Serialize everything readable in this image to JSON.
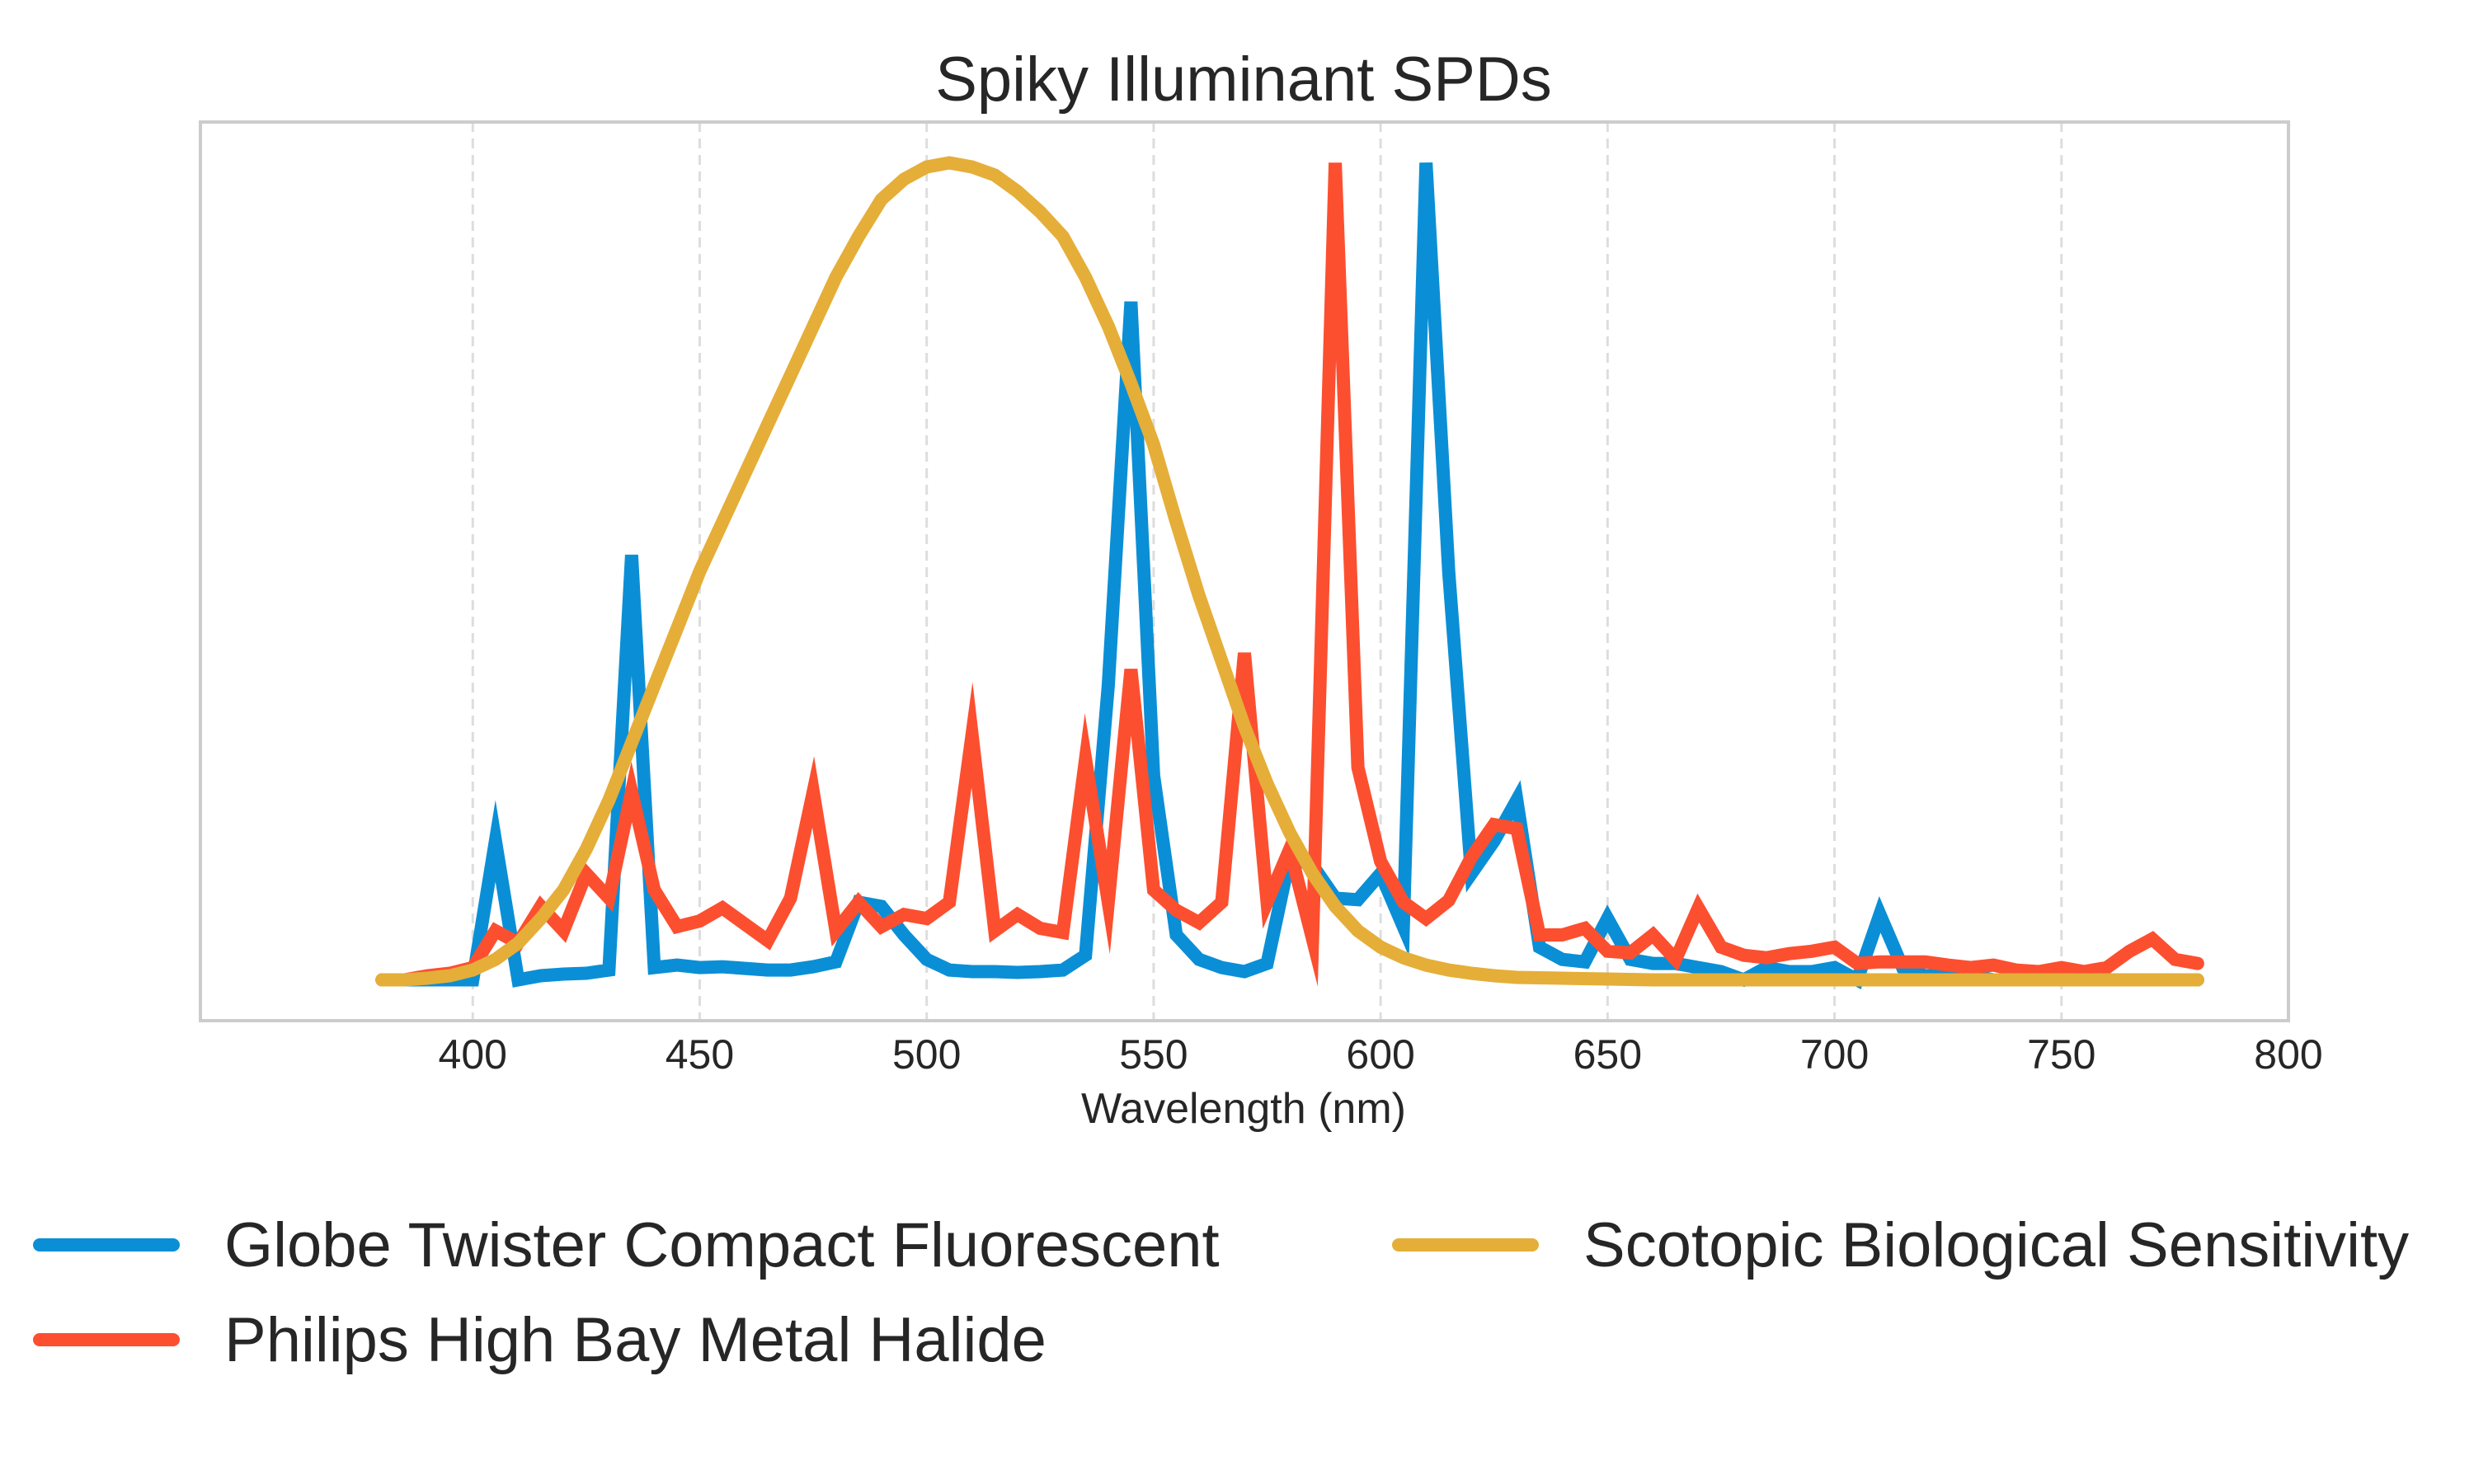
{
  "chart_data": {
    "type": "line",
    "title": "Spiky Illuminant SPDs",
    "xlabel": "Wavelength (nm)",
    "ylabel": "",
    "xlim": [
      340,
      800
    ],
    "ylim": [
      -0.05,
      1.05
    ],
    "x_ticks": [
      "400",
      "450",
      "500",
      "550",
      "600",
      "650",
      "700",
      "750",
      "800"
    ],
    "y_ticks_visible": false,
    "grid": "vertical dashed",
    "legend_position": "bottom, two columns",
    "series": [
      {
        "name": "Globe Twister Compact Fluorescent",
        "color": "#0a8fd6",
        "x": [
          380,
          385,
          390,
          395,
          400,
          405,
          410,
          415,
          420,
          425,
          430,
          435,
          440,
          445,
          450,
          455,
          460,
          465,
          470,
          475,
          480,
          485,
          490,
          495,
          500,
          505,
          510,
          515,
          520,
          525,
          530,
          535,
          540,
          545,
          550,
          555,
          560,
          565,
          570,
          575,
          580,
          585,
          590,
          595,
          600,
          605,
          610,
          615,
          620,
          625,
          630,
          635,
          640,
          645,
          650,
          655,
          660,
          665,
          670,
          675,
          680,
          685,
          690,
          695,
          700,
          705,
          710,
          715,
          720,
          725,
          730,
          735,
          740,
          745,
          750,
          755,
          760,
          765,
          770,
          775,
          780
        ],
        "values": [
          0.0,
          0.0,
          0.0,
          0.0,
          0.0,
          0.17,
          0.0,
          0.005,
          0.007,
          0.008,
          0.012,
          0.52,
          0.015,
          0.018,
          0.015,
          0.016,
          0.014,
          0.012,
          0.012,
          0.016,
          0.022,
          0.095,
          0.09,
          0.055,
          0.025,
          0.012,
          0.01,
          0.01,
          0.009,
          0.01,
          0.012,
          0.03,
          0.36,
          0.83,
          0.25,
          0.055,
          0.025,
          0.015,
          0.01,
          0.02,
          0.15,
          0.14,
          0.1,
          0.098,
          0.13,
          0.065,
          1.0,
          0.5,
          0.13,
          0.17,
          0.22,
          0.04,
          0.025,
          0.022,
          0.075,
          0.025,
          0.02,
          0.02,
          0.015,
          0.01,
          0.0,
          0.015,
          0.01,
          0.01,
          0.015,
          0.0,
          0.08,
          0.015,
          0.005,
          0.005,
          0.005,
          0.0,
          0.0,
          0.0,
          0.0,
          0.0,
          0.0,
          0.0,
          0.0,
          0.0,
          0.0
        ]
      },
      {
        "name": "Philips High Bay Metal Halide",
        "color": "#fc4f30",
        "x": [
          380,
          385,
          390,
          395,
          400,
          405,
          410,
          415,
          420,
          425,
          430,
          435,
          440,
          445,
          450,
          455,
          460,
          465,
          470,
          475,
          480,
          485,
          490,
          495,
          500,
          505,
          510,
          515,
          520,
          525,
          530,
          535,
          540,
          545,
          550,
          555,
          560,
          565,
          570,
          575,
          580,
          585,
          590,
          595,
          600,
          605,
          610,
          615,
          620,
          625,
          630,
          635,
          640,
          645,
          650,
          655,
          660,
          665,
          670,
          675,
          680,
          685,
          690,
          695,
          700,
          705,
          710,
          715,
          720,
          725,
          730,
          735,
          740,
          745,
          750,
          755,
          760,
          765,
          770,
          775,
          780
        ],
        "values": [
          0.0,
          0.0,
          0.005,
          0.008,
          0.015,
          0.06,
          0.045,
          0.09,
          0.06,
          0.13,
          0.1,
          0.23,
          0.11,
          0.065,
          0.072,
          0.088,
          0.068,
          0.048,
          0.1,
          0.23,
          0.06,
          0.095,
          0.065,
          0.08,
          0.075,
          0.095,
          0.3,
          0.06,
          0.08,
          0.063,
          0.058,
          0.27,
          0.095,
          0.38,
          0.11,
          0.085,
          0.07,
          0.095,
          0.4,
          0.095,
          0.16,
          0.05,
          1.0,
          0.26,
          0.145,
          0.095,
          0.075,
          0.097,
          0.15,
          0.19,
          0.185,
          0.055,
          0.055,
          0.063,
          0.035,
          0.033,
          0.055,
          0.025,
          0.088,
          0.04,
          0.03,
          0.027,
          0.032,
          0.035,
          0.04,
          0.02,
          0.022,
          0.022,
          0.022,
          0.018,
          0.015,
          0.018,
          0.012,
          0.01,
          0.015,
          0.01,
          0.015,
          0.035,
          0.05,
          0.025,
          0.02
        ]
      },
      {
        "name": "Scotopic Biological Sensitivity",
        "color": "#e5ae38",
        "x": [
          380,
          385,
          390,
          395,
          400,
          405,
          410,
          415,
          420,
          425,
          430,
          435,
          440,
          445,
          450,
          455,
          460,
          465,
          470,
          475,
          480,
          485,
          490,
          495,
          500,
          505,
          510,
          515,
          520,
          525,
          530,
          535,
          540,
          545,
          550,
          555,
          560,
          565,
          570,
          575,
          580,
          585,
          590,
          595,
          600,
          605,
          610,
          615,
          620,
          625,
          630,
          640,
          650,
          660,
          680,
          700,
          720,
          750,
          780
        ],
        "values": [
          0.0,
          0.0,
          0.002,
          0.005,
          0.012,
          0.025,
          0.045,
          0.075,
          0.11,
          0.16,
          0.22,
          0.29,
          0.36,
          0.43,
          0.5,
          0.56,
          0.62,
          0.68,
          0.74,
          0.8,
          0.86,
          0.91,
          0.955,
          0.98,
          0.995,
          1.0,
          0.995,
          0.985,
          0.965,
          0.94,
          0.91,
          0.86,
          0.8,
          0.73,
          0.655,
          0.56,
          0.47,
          0.39,
          0.31,
          0.24,
          0.18,
          0.13,
          0.09,
          0.06,
          0.04,
          0.027,
          0.018,
          0.012,
          0.008,
          0.005,
          0.003,
          0.002,
          0.001,
          0.0,
          0.0,
          0.0,
          0.0,
          0.0,
          0.0
        ]
      }
    ]
  }
}
